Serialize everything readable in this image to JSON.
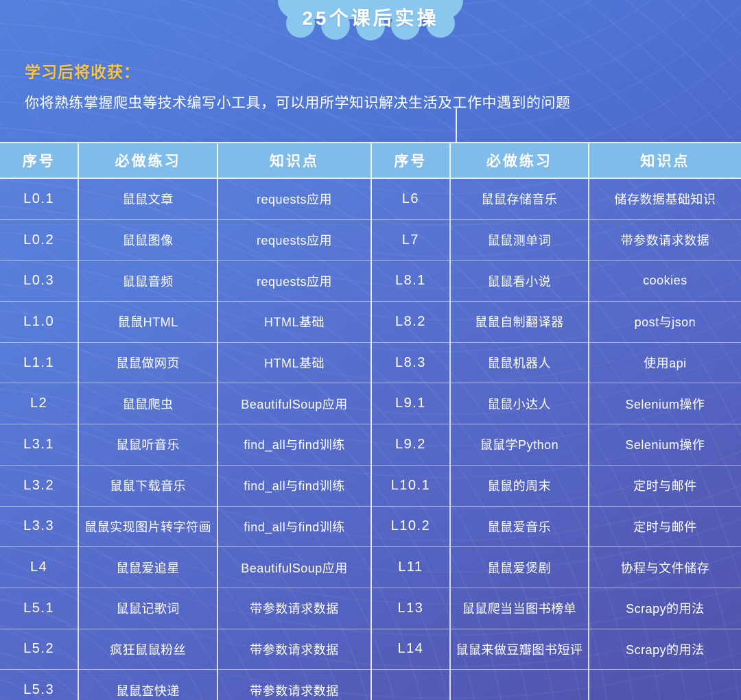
{
  "banner": {
    "title": "25个课后实操"
  },
  "intro": {
    "heading": "学习后将收获：",
    "body": "你将熟练掌握爬虫等技术编写小工具，可以用所学知识解决生活及工作中遇到的问题"
  },
  "colors": {
    "background_top": "#5480dc",
    "background_bottom": "#4749a6",
    "header_bg": "#7fbce9",
    "banner_bg": "#8ac7ef",
    "accent_yellow": "#f6c544",
    "text": "#ffffff"
  },
  "tables": [
    {
      "name": "left",
      "headers": [
        "序号",
        "必做练习",
        "知识点"
      ],
      "rows": [
        [
          "L0.1",
          "鼠鼠文章",
          "requests应用"
        ],
        [
          "L0.2",
          "鼠鼠图像",
          "requests应用"
        ],
        [
          "L0.3",
          "鼠鼠音频",
          "requests应用"
        ],
        [
          "L1.0",
          "鼠鼠HTML",
          "HTML基础"
        ],
        [
          "L1.1",
          "鼠鼠做网页",
          "HTML基础"
        ],
        [
          "L2",
          "鼠鼠爬虫",
          "BeautifulSoup应用"
        ],
        [
          "L3.1",
          "鼠鼠听音乐",
          "find_all与find训练"
        ],
        [
          "L3.2",
          "鼠鼠下载音乐",
          "find_all与find训练"
        ],
        [
          "L3.3",
          "鼠鼠实现图片转字符画",
          "find_all与find训练"
        ],
        [
          "L4",
          "鼠鼠爱追星",
          "BeautifulSoup应用"
        ],
        [
          "L5.1",
          "鼠鼠记歌词",
          "带参数请求数据"
        ],
        [
          "L5.2",
          "疯狂鼠鼠粉丝",
          "带参数请求数据"
        ],
        [
          "L5.3",
          "鼠鼠查快递",
          "带参数请求数据"
        ]
      ]
    },
    {
      "name": "right",
      "headers": [
        "序号",
        "必做练习",
        "知识点"
      ],
      "rows": [
        [
          "L6",
          "鼠鼠存储音乐",
          "储存数据基础知识"
        ],
        [
          "L7",
          "鼠鼠测单词",
          "带参数请求数据"
        ],
        [
          "L8.1",
          "鼠鼠看小说",
          "cookies"
        ],
        [
          "L8.2",
          "鼠鼠自制翻译器",
          "post与json"
        ],
        [
          "L8.3",
          "鼠鼠机器人",
          "使用api"
        ],
        [
          "L9.1",
          "鼠鼠小达人",
          "Selenium操作"
        ],
        [
          "L9.2",
          "鼠鼠学Python",
          "Selenium操作"
        ],
        [
          "L10.1",
          "鼠鼠的周末",
          "定时与邮件"
        ],
        [
          "L10.2",
          "鼠鼠爱音乐",
          "定时与邮件"
        ],
        [
          "L11",
          "鼠鼠爱煲剧",
          "协程与文件储存"
        ],
        [
          "L13",
          "鼠鼠爬当当图书榜单",
          "Scrapy的用法"
        ],
        [
          "L14",
          "鼠鼠来做豆瓣图书短评",
          "Scrapy的用法"
        ],
        [
          "",
          "",
          ""
        ]
      ]
    }
  ]
}
